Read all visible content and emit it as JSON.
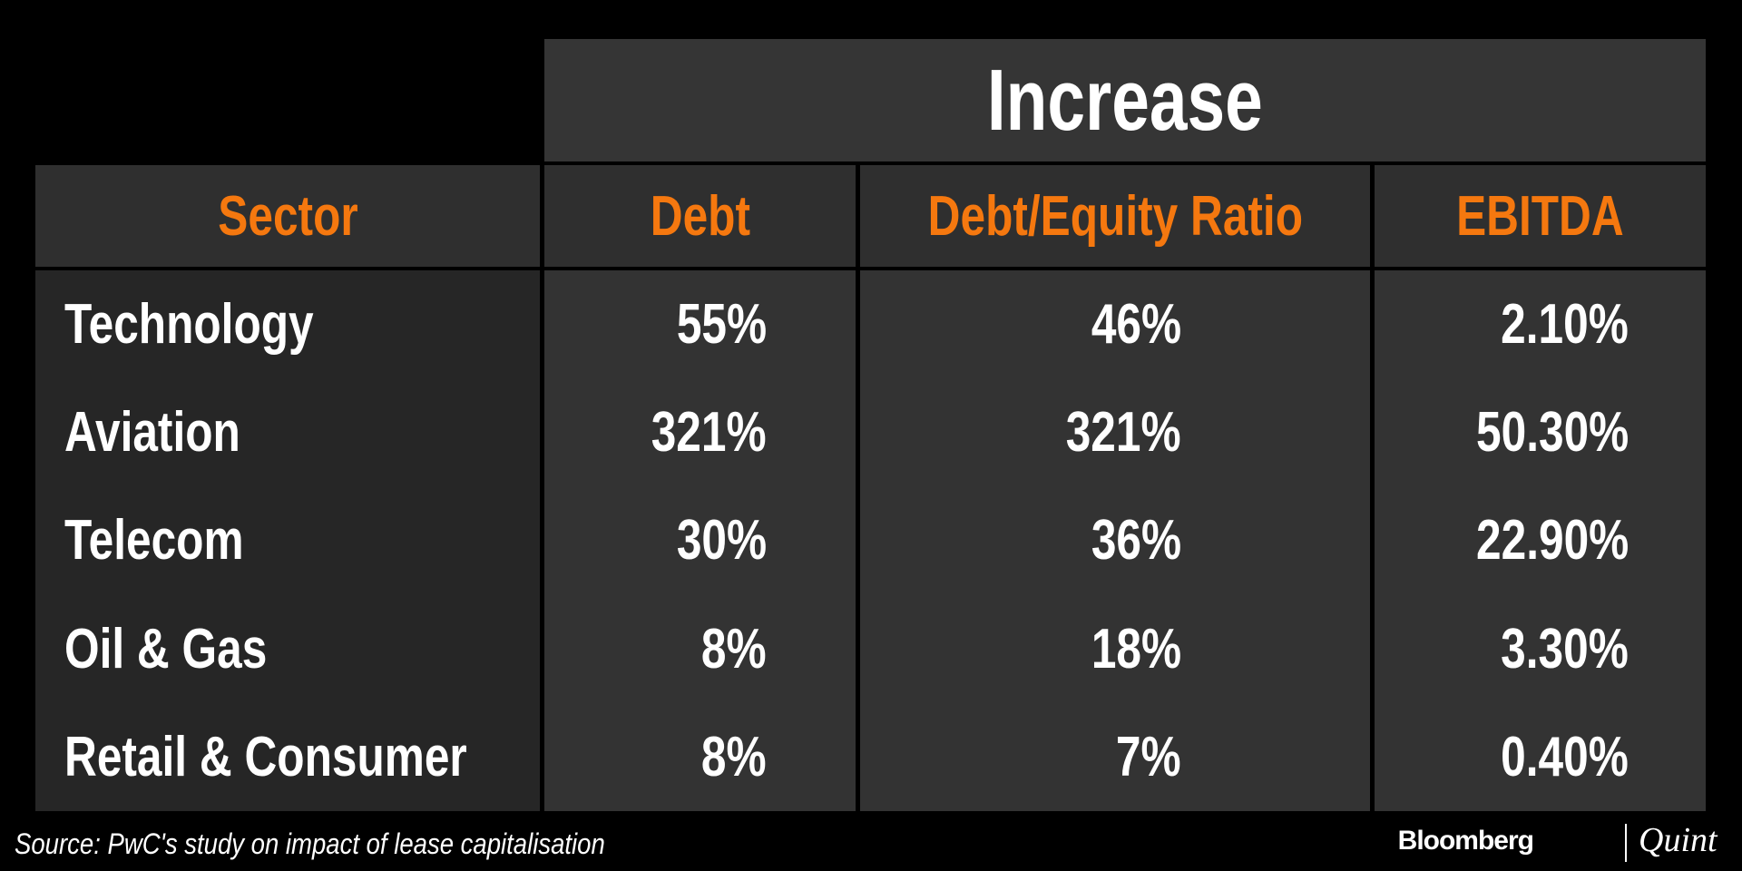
{
  "table": {
    "group_header": "Increase",
    "columns": [
      "Sector",
      "Debt",
      "Debt/Equity Ratio",
      "EBITDA"
    ],
    "rows": [
      [
        "Technology",
        "55%",
        "46%",
        "2.10%"
      ],
      [
        "Aviation",
        "321%",
        "321%",
        "50.30%"
      ],
      [
        "Telecom",
        "30%",
        "36%",
        "22.90%"
      ],
      [
        "Oil & Gas",
        "8%",
        "18%",
        "3.30%"
      ],
      [
        "Retail & Consumer",
        "8%",
        "7%",
        "0.40%"
      ]
    ]
  },
  "footer": {
    "source": "Source: PwC's study on impact of lease capitalisation",
    "brand": "Bloomberg",
    "brand_suffix": "Quint"
  }
}
